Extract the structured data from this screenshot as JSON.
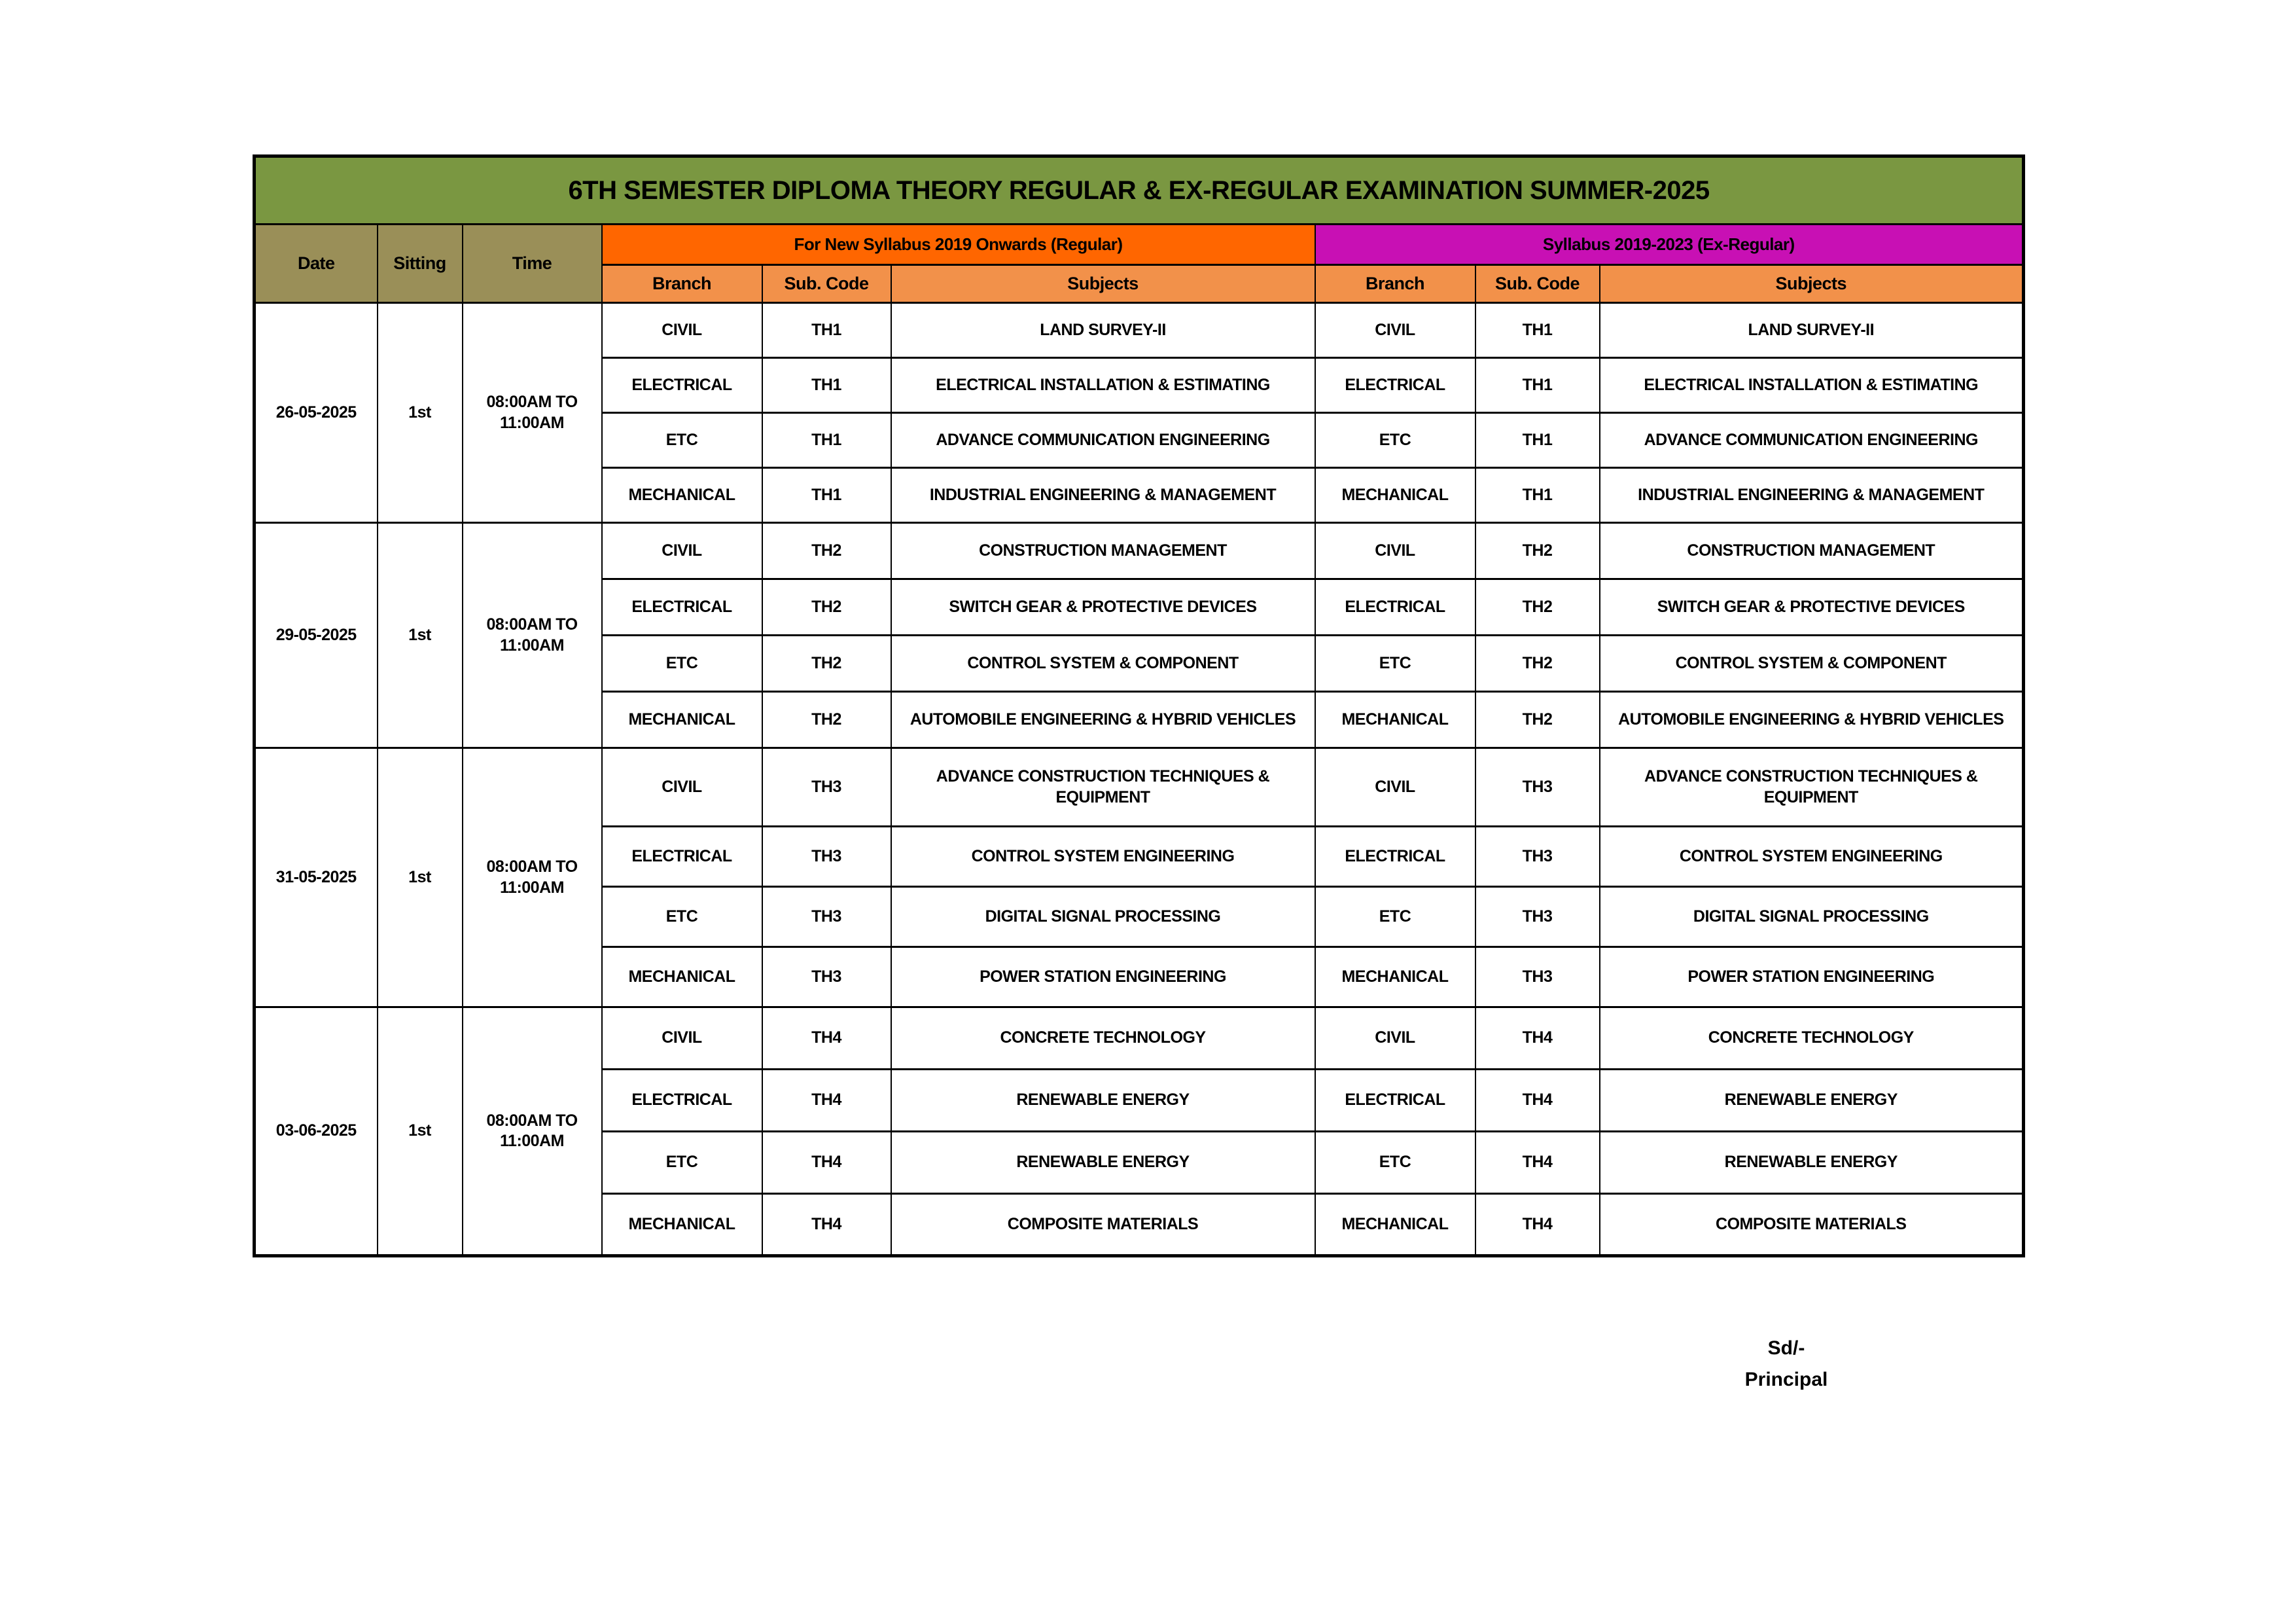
{
  "title": "6TH SEMESTER DIPLOMA THEORY REGULAR & EX-REGULAR EXAMINATION SUMMER-2025",
  "header": {
    "date": "Date",
    "sitting": "Sitting",
    "time": "Time",
    "regular_section": "For New Syllabus 2019 Onwards (Regular)",
    "ex_regular_section": "Syllabus 2019-2023 (Ex-Regular)",
    "branch": "Branch",
    "sub_code": "Sub. Code",
    "subjects": "Subjects"
  },
  "colors": {
    "title_bg": "#7A9741",
    "left_header_bg": "#9A8F58",
    "regular_bg": "#FF6600",
    "ex_regular_bg": "#C810B4",
    "subheader_bg": "#F2914A",
    "border": "#000000",
    "text": "#000000"
  },
  "groups": [
    {
      "date": "26-05-2025",
      "sitting": "1st",
      "time": "08:00AM TO 11:00AM",
      "rows": [
        {
          "branch": "CIVIL",
          "code": "TH1",
          "subject": "LAND SURVEY-II"
        },
        {
          "branch": "ELECTRICAL",
          "code": "TH1",
          "subject": "ELECTRICAL INSTALLATION & ESTIMATING"
        },
        {
          "branch": "ETC",
          "code": "TH1",
          "subject": "ADVANCE COMMUNICATION ENGINEERING"
        },
        {
          "branch": "MECHANICAL",
          "code": "TH1",
          "subject": "INDUSTRIAL ENGINEERING & MANAGEMENT"
        }
      ]
    },
    {
      "date": "29-05-2025",
      "sitting": "1st",
      "time": "08:00AM TO 11:00AM",
      "rows": [
        {
          "branch": "CIVIL",
          "code": "TH2",
          "subject": "CONSTRUCTION MANAGEMENT"
        },
        {
          "branch": "ELECTRICAL",
          "code": "TH2",
          "subject": "SWITCH GEAR & PROTECTIVE DEVICES"
        },
        {
          "branch": "ETC",
          "code": "TH2",
          "subject": "CONTROL SYSTEM & COMPONENT"
        },
        {
          "branch": "MECHANICAL",
          "code": "TH2",
          "subject": "AUTOMOBILE ENGINEERING & HYBRID VEHICLES"
        }
      ]
    },
    {
      "date": "31-05-2025",
      "sitting": "1st",
      "time": "08:00AM TO 11:00AM",
      "rows": [
        {
          "branch": "CIVIL",
          "code": "TH3",
          "subject": "ADVANCE CONSTRUCTION TECHNIQUES & EQUIPMENT"
        },
        {
          "branch": "ELECTRICAL",
          "code": "TH3",
          "subject": "CONTROL SYSTEM ENGINEERING"
        },
        {
          "branch": "ETC",
          "code": "TH3",
          "subject": "DIGITAL SIGNAL PROCESSING"
        },
        {
          "branch": "MECHANICAL",
          "code": "TH3",
          "subject": "POWER STATION ENGINEERING"
        }
      ]
    },
    {
      "date": "03-06-2025",
      "sitting": "1st",
      "time": "08:00AM TO 11:00AM",
      "rows": [
        {
          "branch": "CIVIL",
          "code": "TH4",
          "subject": "CONCRETE TECHNOLOGY"
        },
        {
          "branch": "ELECTRICAL",
          "code": "TH4",
          "subject": "RENEWABLE ENERGY"
        },
        {
          "branch": "ETC",
          "code": "TH4",
          "subject": "RENEWABLE ENERGY"
        },
        {
          "branch": "MECHANICAL",
          "code": "TH4",
          "subject": "COMPOSITE MATERIALS"
        }
      ]
    }
  ],
  "signature": {
    "sd": "Sd/-",
    "principal": "Principal"
  }
}
